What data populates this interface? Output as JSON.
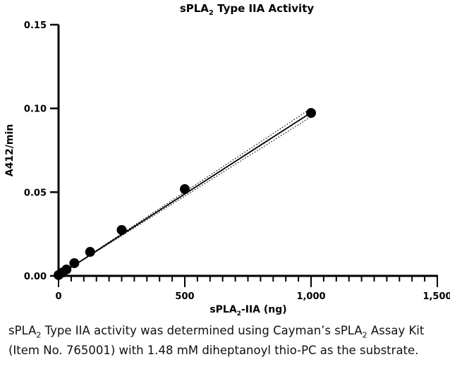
{
  "chart_data": {
    "type": "scatter",
    "title": "sPLA",
    "title_sub": "2",
    "title_rest": " Type IIA Activity",
    "xlabel": "sPLA",
    "xlabel_sub": "2",
    "xlabel_rest": "-IIA (ng)",
    "ylabel": "A412/min",
    "xlim": [
      0,
      1500
    ],
    "ylim": [
      0,
      0.15
    ],
    "x_ticks": [
      0,
      500,
      1000,
      1500
    ],
    "x_tick_labels": [
      "0",
      "500",
      "1,000",
      "1,500"
    ],
    "x_minor_step": 50,
    "y_ticks": [
      0,
      0.05,
      0.1,
      0.15
    ],
    "y_tick_labels": [
      "0.00",
      "0.05",
      "0.10",
      "0.15"
    ],
    "grid": false,
    "points": {
      "x": [
        0,
        15.6,
        31.25,
        62.5,
        125,
        250,
        500,
        1000
      ],
      "y": [
        0.0005,
        0.002,
        0.0038,
        0.0076,
        0.0143,
        0.0274,
        0.0518,
        0.0973
      ]
    },
    "fit_line": {
      "slope": 9.72e-05,
      "intercept": 0.0003,
      "style": "solid"
    },
    "confidence_band": {
      "style": "dotted",
      "half_width_at_max": 0.0025
    },
    "color": "#000000"
  },
  "caption": {
    "p1": "sPLA",
    "p1_sub": "2",
    "p2": " Type IIA activity was determined using Cayman’s sPLA",
    "p2_sub": "2",
    "p3": " Assay Kit (Item No. 765001) with 1.48 mM diheptanoyl thio-PC as the substrate."
  }
}
